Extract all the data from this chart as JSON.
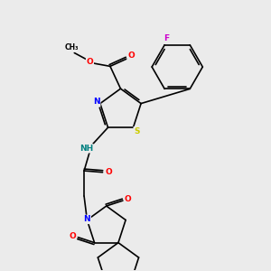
{
  "background_color": "#ebebeb",
  "bond_color": "#000000",
  "atom_colors": {
    "N": "#0000ff",
    "O": "#ff0000",
    "S": "#cccc00",
    "F": "#cc00cc",
    "H": "#008080",
    "C": "#000000"
  },
  "figsize": [
    3.0,
    3.0
  ],
  "dpi": 100
}
